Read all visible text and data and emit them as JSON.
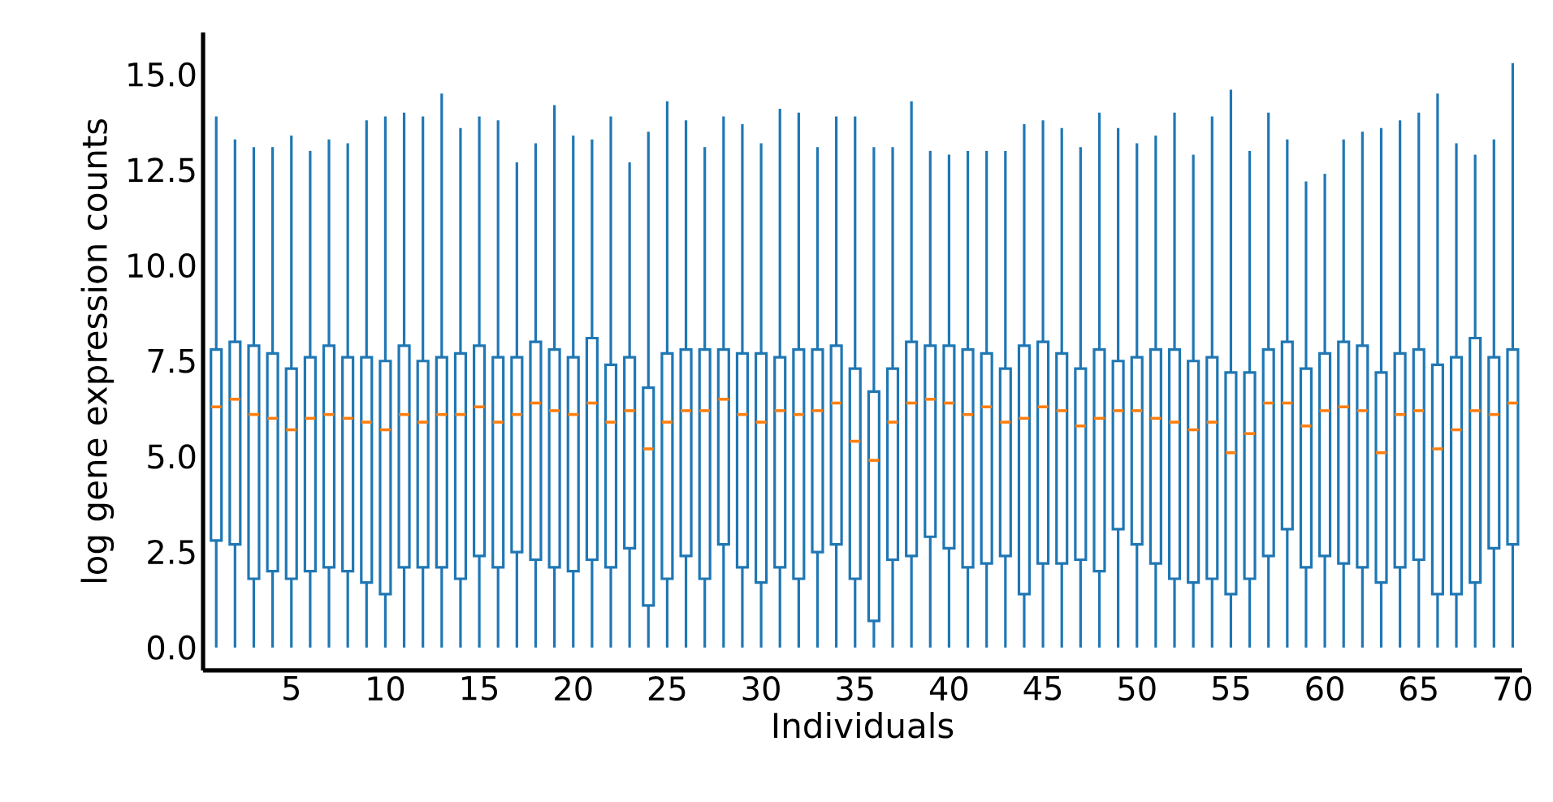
{
  "chart_data": {
    "type": "box",
    "xlabel": "Individuals",
    "ylabel": "log gene expression counts",
    "x": [
      1,
      2,
      3,
      4,
      5,
      6,
      7,
      8,
      9,
      10,
      11,
      12,
      13,
      14,
      15,
      16,
      17,
      18,
      19,
      20,
      21,
      22,
      23,
      24,
      25,
      26,
      27,
      28,
      29,
      30,
      31,
      32,
      33,
      34,
      35,
      36,
      37,
      38,
      39,
      40,
      41,
      42,
      43,
      44,
      45,
      46,
      47,
      48,
      49,
      50,
      51,
      52,
      53,
      54,
      55,
      56,
      57,
      58,
      59,
      60,
      61,
      62,
      63,
      64,
      65,
      66,
      67,
      68,
      69,
      70
    ],
    "xlim": [
      0.3,
      70.5
    ],
    "xticks": [
      5,
      10,
      15,
      20,
      25,
      30,
      35,
      40,
      45,
      50,
      55,
      60,
      65,
      70
    ],
    "ylim": [
      -0.6,
      16.1
    ],
    "yticks": [
      {
        "value": 0,
        "label": "0.0"
      },
      {
        "value": 2.5,
        "label": "2.5"
      },
      {
        "value": 5,
        "label": "5.0"
      },
      {
        "value": 7.5,
        "label": "7.5"
      },
      {
        "value": 10,
        "label": "10.0"
      },
      {
        "value": 12.5,
        "label": "12.5"
      },
      {
        "value": 15,
        "label": "15.0"
      }
    ],
    "series": [
      {
        "color": "#1f77b4",
        "boxes": [
          {
            "low": 0,
            "q1": 2.8,
            "median": 6.3,
            "q3": 7.8,
            "high": 13.9
          },
          {
            "low": 0,
            "q1": 2.7,
            "median": 6.5,
            "q3": 8.0,
            "high": 13.3
          },
          {
            "low": 0,
            "q1": 1.8,
            "median": 6.1,
            "q3": 7.9,
            "high": 13.1
          },
          {
            "low": 0,
            "q1": 2.0,
            "median": 6.0,
            "q3": 7.7,
            "high": 13.1
          },
          {
            "low": 0,
            "q1": 1.8,
            "median": 5.7,
            "q3": 7.3,
            "high": 13.4
          },
          {
            "low": 0,
            "q1": 2.0,
            "median": 6.0,
            "q3": 7.6,
            "high": 13.0
          },
          {
            "low": 0,
            "q1": 2.1,
            "median": 6.1,
            "q3": 7.9,
            "high": 13.3
          },
          {
            "low": 0,
            "q1": 2.0,
            "median": 6.0,
            "q3": 7.6,
            "high": 13.2
          },
          {
            "low": 0,
            "q1": 1.7,
            "median": 5.9,
            "q3": 7.6,
            "high": 13.8
          },
          {
            "low": 0,
            "q1": 1.4,
            "median": 5.7,
            "q3": 7.5,
            "high": 13.9
          },
          {
            "low": 0,
            "q1": 2.1,
            "median": 6.1,
            "q3": 7.9,
            "high": 14.0
          },
          {
            "low": 0,
            "q1": 2.1,
            "median": 5.9,
            "q3": 7.5,
            "high": 13.9
          },
          {
            "low": 0,
            "q1": 2.1,
            "median": 6.1,
            "q3": 7.6,
            "high": 14.5
          },
          {
            "low": 0,
            "q1": 1.8,
            "median": 6.1,
            "q3": 7.7,
            "high": 13.6
          },
          {
            "low": 0,
            "q1": 2.4,
            "median": 6.3,
            "q3": 7.9,
            "high": 13.9
          },
          {
            "low": 0,
            "q1": 2.1,
            "median": 5.9,
            "q3": 7.6,
            "high": 13.8
          },
          {
            "low": 0,
            "q1": 2.5,
            "median": 6.1,
            "q3": 7.6,
            "high": 12.7
          },
          {
            "low": 0,
            "q1": 2.3,
            "median": 6.4,
            "q3": 8.0,
            "high": 13.2
          },
          {
            "low": 0,
            "q1": 2.1,
            "median": 6.2,
            "q3": 7.8,
            "high": 14.2
          },
          {
            "low": 0,
            "q1": 2.0,
            "median": 6.1,
            "q3": 7.6,
            "high": 13.4
          },
          {
            "low": 0,
            "q1": 2.3,
            "median": 6.4,
            "q3": 8.1,
            "high": 13.3
          },
          {
            "low": 0,
            "q1": 2.1,
            "median": 5.9,
            "q3": 7.4,
            "high": 13.9
          },
          {
            "low": 0,
            "q1": 2.6,
            "median": 6.2,
            "q3": 7.6,
            "high": 12.7
          },
          {
            "low": 0,
            "q1": 1.1,
            "median": 5.2,
            "q3": 6.8,
            "high": 13.5
          },
          {
            "low": 0,
            "q1": 1.8,
            "median": 5.9,
            "q3": 7.7,
            "high": 14.3
          },
          {
            "low": 0,
            "q1": 2.4,
            "median": 6.2,
            "q3": 7.8,
            "high": 13.8
          },
          {
            "low": 0,
            "q1": 1.8,
            "median": 6.2,
            "q3": 7.8,
            "high": 13.1
          },
          {
            "low": 0,
            "q1": 2.7,
            "median": 6.5,
            "q3": 7.8,
            "high": 13.9
          },
          {
            "low": 0,
            "q1": 2.1,
            "median": 6.1,
            "q3": 7.7,
            "high": 13.7
          },
          {
            "low": 0,
            "q1": 1.7,
            "median": 5.9,
            "q3": 7.7,
            "high": 13.2
          },
          {
            "low": 0,
            "q1": 2.1,
            "median": 6.2,
            "q3": 7.6,
            "high": 14.1
          },
          {
            "low": 0,
            "q1": 1.8,
            "median": 6.1,
            "q3": 7.8,
            "high": 14.0
          },
          {
            "low": 0,
            "q1": 2.5,
            "median": 6.2,
            "q3": 7.8,
            "high": 13.1
          },
          {
            "low": 0,
            "q1": 2.7,
            "median": 6.4,
            "q3": 7.9,
            "high": 13.9
          },
          {
            "low": 0,
            "q1": 1.8,
            "median": 5.4,
            "q3": 7.3,
            "high": 13.9
          },
          {
            "low": 0,
            "q1": 0.7,
            "median": 4.9,
            "q3": 6.7,
            "high": 13.1
          },
          {
            "low": 0,
            "q1": 2.3,
            "median": 5.9,
            "q3": 7.3,
            "high": 13.1
          },
          {
            "low": 0,
            "q1": 2.4,
            "median": 6.4,
            "q3": 8.0,
            "high": 14.3
          },
          {
            "low": 0,
            "q1": 2.9,
            "median": 6.5,
            "q3": 7.9,
            "high": 13.0
          },
          {
            "low": 0,
            "q1": 2.6,
            "median": 6.4,
            "q3": 7.9,
            "high": 12.9
          },
          {
            "low": 0,
            "q1": 2.1,
            "median": 6.1,
            "q3": 7.8,
            "high": 13.0
          },
          {
            "low": 0,
            "q1": 2.2,
            "median": 6.3,
            "q3": 7.7,
            "high": 13.0
          },
          {
            "low": 0,
            "q1": 2.4,
            "median": 5.9,
            "q3": 7.3,
            "high": 13.0
          },
          {
            "low": 0,
            "q1": 1.4,
            "median": 6.0,
            "q3": 7.9,
            "high": 13.7
          },
          {
            "low": 0,
            "q1": 2.2,
            "median": 6.3,
            "q3": 8.0,
            "high": 13.8
          },
          {
            "low": 0,
            "q1": 2.2,
            "median": 6.2,
            "q3": 7.7,
            "high": 13.6
          },
          {
            "low": 0,
            "q1": 2.3,
            "median": 5.8,
            "q3": 7.3,
            "high": 13.1
          },
          {
            "low": 0,
            "q1": 2.0,
            "median": 6.0,
            "q3": 7.8,
            "high": 14.0
          },
          {
            "low": 0,
            "q1": 3.1,
            "median": 6.2,
            "q3": 7.5,
            "high": 13.6
          },
          {
            "low": 0,
            "q1": 2.7,
            "median": 6.2,
            "q3": 7.6,
            "high": 13.2
          },
          {
            "low": 0,
            "q1": 2.2,
            "median": 6.0,
            "q3": 7.8,
            "high": 13.4
          },
          {
            "low": 0,
            "q1": 1.8,
            "median": 5.9,
            "q3": 7.8,
            "high": 14.0
          },
          {
            "low": 0,
            "q1": 1.7,
            "median": 5.7,
            "q3": 7.5,
            "high": 12.9
          },
          {
            "low": 0,
            "q1": 1.8,
            "median": 5.9,
            "q3": 7.6,
            "high": 13.9
          },
          {
            "low": 0,
            "q1": 1.4,
            "median": 5.1,
            "q3": 7.2,
            "high": 14.6
          },
          {
            "low": 0,
            "q1": 1.8,
            "median": 5.6,
            "q3": 7.2,
            "high": 13.0
          },
          {
            "low": 0,
            "q1": 2.4,
            "median": 6.4,
            "q3": 7.8,
            "high": 14.0
          },
          {
            "low": 0,
            "q1": 3.1,
            "median": 6.4,
            "q3": 8.0,
            "high": 13.3
          },
          {
            "low": 0,
            "q1": 2.1,
            "median": 5.8,
            "q3": 7.3,
            "high": 12.2
          },
          {
            "low": 0,
            "q1": 2.4,
            "median": 6.2,
            "q3": 7.7,
            "high": 12.4
          },
          {
            "low": 0,
            "q1": 2.2,
            "median": 6.3,
            "q3": 8.0,
            "high": 13.3
          },
          {
            "low": 0,
            "q1": 2.1,
            "median": 6.2,
            "q3": 7.9,
            "high": 13.5
          },
          {
            "low": 0,
            "q1": 1.7,
            "median": 5.1,
            "q3": 7.2,
            "high": 13.6
          },
          {
            "low": 0,
            "q1": 2.1,
            "median": 6.1,
            "q3": 7.7,
            "high": 13.8
          },
          {
            "low": 0,
            "q1": 2.3,
            "median": 6.2,
            "q3": 7.8,
            "high": 14.0
          },
          {
            "low": 0,
            "q1": 1.4,
            "median": 5.2,
            "q3": 7.4,
            "high": 14.5
          },
          {
            "low": 0,
            "q1": 1.4,
            "median": 5.7,
            "q3": 7.6,
            "high": 13.2
          },
          {
            "low": 0,
            "q1": 1.7,
            "median": 6.2,
            "q3": 8.1,
            "high": 12.9
          },
          {
            "low": 0,
            "q1": 2.6,
            "median": 6.1,
            "q3": 7.6,
            "high": 13.3
          },
          {
            "low": 0,
            "q1": 2.7,
            "median": 6.4,
            "q3": 7.8,
            "high": 15.3
          }
        ]
      }
    ]
  }
}
